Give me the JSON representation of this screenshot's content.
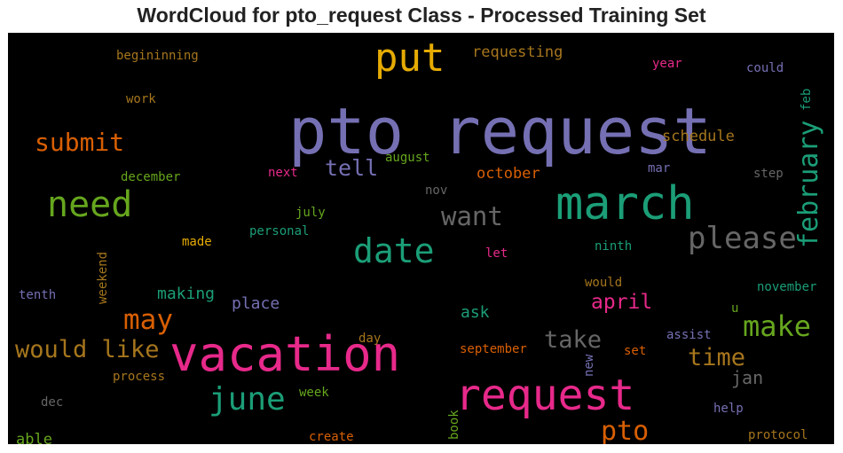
{
  "chart_data": {
    "type": "wordcloud",
    "title": "WordCloud for pto_request Class - Processed Training Set",
    "background": "#000000",
    "words": [
      {
        "text": "pto request",
        "color": "#7570b3"
      },
      {
        "text": "vacation",
        "color": "#e7298a"
      },
      {
        "text": "request",
        "color": "#e7298a"
      },
      {
        "text": "march",
        "color": "#1b9e77"
      },
      {
        "text": "put",
        "color": "#e6ab02"
      },
      {
        "text": "date",
        "color": "#1b9e77"
      },
      {
        "text": "need",
        "color": "#66a61e"
      },
      {
        "text": "june",
        "color": "#1b9e77"
      },
      {
        "text": "please",
        "color": "#666666"
      },
      {
        "text": "february",
        "color": "#1b9e77"
      },
      {
        "text": "would like",
        "color": "#a6761d"
      },
      {
        "text": "make",
        "color": "#66a61e"
      },
      {
        "text": "want",
        "color": "#666666"
      },
      {
        "text": "submit",
        "color": "#d95f02"
      },
      {
        "text": "may",
        "color": "#d95f02"
      },
      {
        "text": "pto",
        "color": "#d95f02"
      },
      {
        "text": "take",
        "color": "#666666"
      },
      {
        "text": "time",
        "color": "#a6761d"
      },
      {
        "text": "tell",
        "color": "#7570b3"
      },
      {
        "text": "april",
        "color": "#e7298a"
      },
      {
        "text": "jan",
        "color": "#666666"
      },
      {
        "text": "schedule",
        "color": "#a6761d"
      },
      {
        "text": "requesting",
        "color": "#a6761d"
      },
      {
        "text": "october",
        "color": "#d95f02"
      },
      {
        "text": "making",
        "color": "#1b9e77"
      },
      {
        "text": "place",
        "color": "#7570b3"
      },
      {
        "text": "ask",
        "color": "#1b9e77"
      },
      {
        "text": "able",
        "color": "#66a61e"
      },
      {
        "text": "begininning",
        "color": "#a6761d"
      },
      {
        "text": "work",
        "color": "#a6761d"
      },
      {
        "text": "december",
        "color": "#66a61e"
      },
      {
        "text": "next",
        "color": "#e7298a"
      },
      {
        "text": "august",
        "color": "#66a61e"
      },
      {
        "text": "nov",
        "color": "#666666"
      },
      {
        "text": "july",
        "color": "#66a61e"
      },
      {
        "text": "personal",
        "color": "#1b9e77"
      },
      {
        "text": "made",
        "color": "#e6ab02"
      },
      {
        "text": "let",
        "color": "#e7298a"
      },
      {
        "text": "ninth",
        "color": "#1b9e77"
      },
      {
        "text": "would",
        "color": "#a6761d"
      },
      {
        "text": "year",
        "color": "#e7298a"
      },
      {
        "text": "could",
        "color": "#7570b3"
      },
      {
        "text": "feb",
        "color": "#1b9e77"
      },
      {
        "text": "mar",
        "color": "#7570b3"
      },
      {
        "text": "step",
        "color": "#666666"
      },
      {
        "text": "november",
        "color": "#1b9e77"
      },
      {
        "text": "u",
        "color": "#66a61e"
      },
      {
        "text": "assist",
        "color": "#7570b3"
      },
      {
        "text": "set",
        "color": "#d95f02"
      },
      {
        "text": "help",
        "color": "#7570b3"
      },
      {
        "text": "protocol",
        "color": "#a6761d"
      },
      {
        "text": "tenth",
        "color": "#7570b3"
      },
      {
        "text": "weekend",
        "color": "#a6761d"
      },
      {
        "text": "day",
        "color": "#a6761d"
      },
      {
        "text": "september",
        "color": "#d95f02"
      },
      {
        "text": "process",
        "color": "#a6761d"
      },
      {
        "text": "week",
        "color": "#66a61e"
      },
      {
        "text": "dec",
        "color": "#666666"
      },
      {
        "text": "new",
        "color": "#7570b3"
      },
      {
        "text": "create",
        "color": "#d95f02"
      },
      {
        "text": "book",
        "color": "#66a61e"
      }
    ]
  }
}
